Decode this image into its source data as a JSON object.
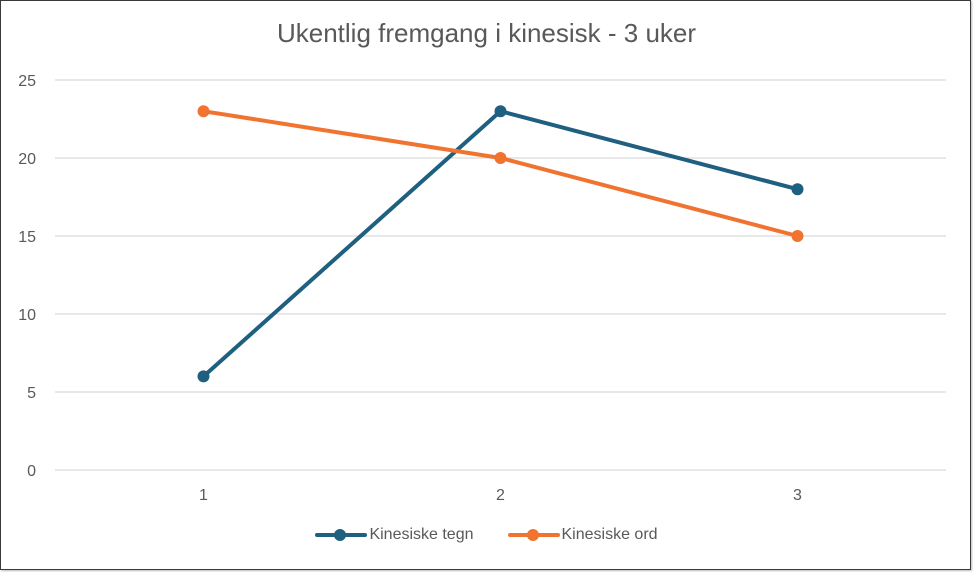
{
  "chart_data": {
    "type": "line",
    "title": "Ukentlig fremgang i kinesisk - 3 uker",
    "xlabel": "",
    "ylabel": "",
    "x": [
      "1",
      "2",
      "3"
    ],
    "categories": [
      "1",
      "2",
      "3"
    ],
    "ylim": [
      0,
      25
    ],
    "yticks": [
      0,
      5,
      10,
      15,
      20,
      25
    ],
    "grid": true,
    "legend_position": "bottom",
    "series": [
      {
        "name": "Kinesiske tegn",
        "values": [
          6,
          23,
          18
        ],
        "color": "#1f5f80"
      },
      {
        "name": "Kinesiske ord",
        "values": [
          23,
          20,
          15
        ],
        "color": "#f07430"
      }
    ]
  },
  "colors": {
    "gridline": "#d9d9d9",
    "text": "#595959"
  }
}
